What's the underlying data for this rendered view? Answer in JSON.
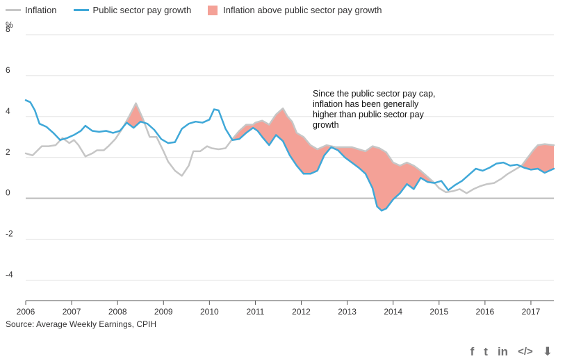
{
  "legend": {
    "inflation": "Inflation",
    "pay": "Public sector pay growth",
    "gap": "Inflation above public sector pay growth"
  },
  "source": "Source: Average Weekly Earnings, CPIH",
  "annotation": [
    "Since the public sector pay cap,",
    "inflation has been generally",
    "higher than public sector pay",
    "growth"
  ],
  "share_icons": [
    "facebook-icon",
    "twitter-icon",
    "linkedin-icon",
    "embed-icon",
    "download-icon"
  ],
  "share_glyphs": {
    "facebook": "f",
    "twitter": "t",
    "linkedin": "in",
    "embed": "</>",
    "download": "⬇"
  },
  "colors": {
    "inflation": "#c6c6c6",
    "pay": "#3fa8d8",
    "gap": "#f4a197",
    "grid": "#e0e0e0",
    "text": "#323132",
    "icons": "#707071"
  },
  "chart_data": {
    "type": "line",
    "ylabel": "%",
    "ylim": [
      -5,
      8
    ],
    "xlim": [
      2006.0,
      2017.5
    ],
    "yticks": [
      8,
      6,
      4,
      2,
      0,
      -2,
      -4
    ],
    "xticks": [
      2006,
      2007,
      2008,
      2009,
      2010,
      2011,
      2012,
      2013,
      2014,
      2015,
      2016,
      2017
    ],
    "series": [
      {
        "name": "Inflation",
        "x": [
          2006.0,
          2006.15,
          2006.35,
          2006.5,
          2006.65,
          2006.8,
          2006.95,
          2007.05,
          2007.15,
          2007.3,
          2007.45,
          2007.55,
          2007.7,
          2007.8,
          2007.95,
          2008.1,
          2008.25,
          2008.4,
          2008.55,
          2008.7,
          2008.85,
          2009.0,
          2009.1,
          2009.25,
          2009.4,
          2009.55,
          2009.65,
          2009.8,
          2009.95,
          2010.05,
          2010.2,
          2010.35,
          2010.5,
          2010.65,
          2010.8,
          2010.95,
          2011.0,
          2011.15,
          2011.3,
          2011.45,
          2011.6,
          2011.7,
          2011.8,
          2011.9,
          2012.05,
          2012.2,
          2012.35,
          2012.55,
          2012.75,
          2012.95,
          2013.1,
          2013.25,
          2013.4,
          2013.55,
          2013.7,
          2013.85,
          2014.0,
          2014.15,
          2014.3,
          2014.45,
          2014.6,
          2014.75,
          2014.9,
          2015.0,
          2015.15,
          2015.3,
          2015.45,
          2015.6,
          2015.75,
          2015.9,
          2016.05,
          2016.2,
          2016.35,
          2016.5,
          2016.65,
          2016.8,
          2016.95,
          2017.05,
          2017.15,
          2017.3,
          2017.5
        ],
        "values": [
          2.2,
          2.1,
          2.55,
          2.55,
          2.6,
          2.95,
          2.7,
          2.85,
          2.6,
          2.05,
          2.2,
          2.35,
          2.35,
          2.55,
          2.9,
          3.4,
          4.0,
          4.65,
          3.9,
          3.0,
          3.0,
          2.3,
          1.8,
          1.35,
          1.1,
          1.6,
          2.3,
          2.3,
          2.55,
          2.45,
          2.4,
          2.45,
          2.9,
          3.3,
          3.6,
          3.6,
          3.7,
          3.8,
          3.6,
          4.1,
          4.4,
          4.0,
          3.75,
          3.2,
          3.0,
          2.6,
          2.4,
          2.6,
          2.5,
          2.5,
          2.5,
          2.4,
          2.3,
          2.55,
          2.45,
          2.25,
          1.75,
          1.6,
          1.75,
          1.6,
          1.35,
          1.05,
          0.75,
          0.5,
          0.3,
          0.35,
          0.45,
          0.25,
          0.45,
          0.6,
          0.7,
          0.75,
          0.95,
          1.2,
          1.4,
          1.6,
          2.05,
          2.35,
          2.6,
          2.65,
          2.6
        ]
      },
      {
        "name": "Public sector pay growth",
        "x": [
          2006.0,
          2006.1,
          2006.2,
          2006.3,
          2006.45,
          2006.6,
          2006.75,
          2006.9,
          2007.05,
          2007.2,
          2007.3,
          2007.45,
          2007.6,
          2007.75,
          2007.9,
          2008.05,
          2008.2,
          2008.35,
          2008.5,
          2008.65,
          2008.8,
          2008.95,
          2009.1,
          2009.25,
          2009.4,
          2009.55,
          2009.7,
          2009.85,
          2010.0,
          2010.1,
          2010.2,
          2010.35,
          2010.5,
          2010.65,
          2010.8,
          2010.95,
          2011.05,
          2011.15,
          2011.3,
          2011.45,
          2011.6,
          2011.75,
          2011.9,
          2012.05,
          2012.2,
          2012.35,
          2012.5,
          2012.65,
          2012.8,
          2012.95,
          2013.1,
          2013.25,
          2013.4,
          2013.55,
          2013.65,
          2013.75,
          2013.85,
          2014.0,
          2014.15,
          2014.3,
          2014.45,
          2014.6,
          2014.75,
          2014.9,
          2015.05,
          2015.2,
          2015.35,
          2015.5,
          2015.65,
          2015.8,
          2015.95,
          2016.1,
          2016.25,
          2016.4,
          2016.55,
          2016.7,
          2016.85,
          2017.0,
          2017.15,
          2017.3,
          2017.5
        ],
        "values": [
          4.8,
          4.7,
          4.3,
          3.65,
          3.5,
          3.2,
          2.85,
          2.95,
          3.1,
          3.3,
          3.55,
          3.3,
          3.25,
          3.3,
          3.2,
          3.3,
          3.7,
          3.45,
          3.75,
          3.65,
          3.35,
          2.9,
          2.7,
          2.75,
          3.4,
          3.65,
          3.75,
          3.7,
          3.85,
          4.35,
          4.3,
          3.4,
          2.85,
          2.9,
          3.2,
          3.45,
          3.3,
          3.0,
          2.6,
          3.1,
          2.8,
          2.1,
          1.6,
          1.2,
          1.2,
          1.35,
          2.1,
          2.5,
          2.35,
          2.0,
          1.75,
          1.5,
          1.2,
          0.5,
          -0.4,
          -0.6,
          -0.5,
          -0.05,
          0.25,
          0.7,
          0.45,
          1.0,
          0.8,
          0.75,
          0.85,
          0.4,
          0.65,
          0.85,
          1.15,
          1.45,
          1.35,
          1.5,
          1.7,
          1.75,
          1.6,
          1.65,
          1.5,
          1.4,
          1.45,
          1.25,
          1.45
        ]
      }
    ]
  }
}
